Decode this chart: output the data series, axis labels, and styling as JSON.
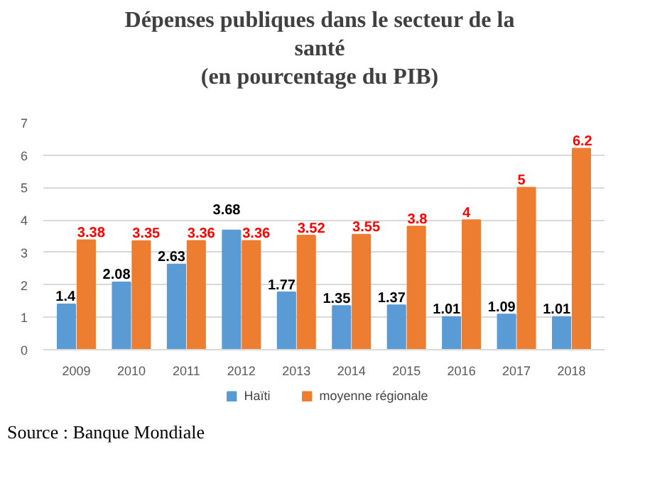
{
  "chart_data": {
    "type": "bar",
    "title": "Dépenses publiques dans le secteur de la\nsanté\n(en pourcentage du PIB)",
    "categories": [
      "2009",
      "2010",
      "2011",
      "2012",
      "2013",
      "2014",
      "2015",
      "2016",
      "2017",
      "2018"
    ],
    "series": [
      {
        "name": "Haïti",
        "color": "#5b9bd5",
        "values": [
          1.4,
          2.08,
          2.63,
          3.68,
          1.77,
          1.35,
          1.37,
          1.01,
          1.09,
          1.01
        ]
      },
      {
        "name": "moyenne régionale",
        "color": "#ed7d31",
        "values": [
          3.38,
          3.35,
          3.36,
          3.36,
          3.52,
          3.55,
          3.8,
          4,
          5,
          6.2
        ]
      }
    ],
    "ylim": [
      0,
      7
    ],
    "yticks": [
      0,
      1,
      2,
      3,
      4,
      5,
      6,
      7
    ],
    "grid": "y",
    "legend": "bottom",
    "data_labels": true,
    "annotations": [
      "Source : Banque Mondiale"
    ]
  }
}
